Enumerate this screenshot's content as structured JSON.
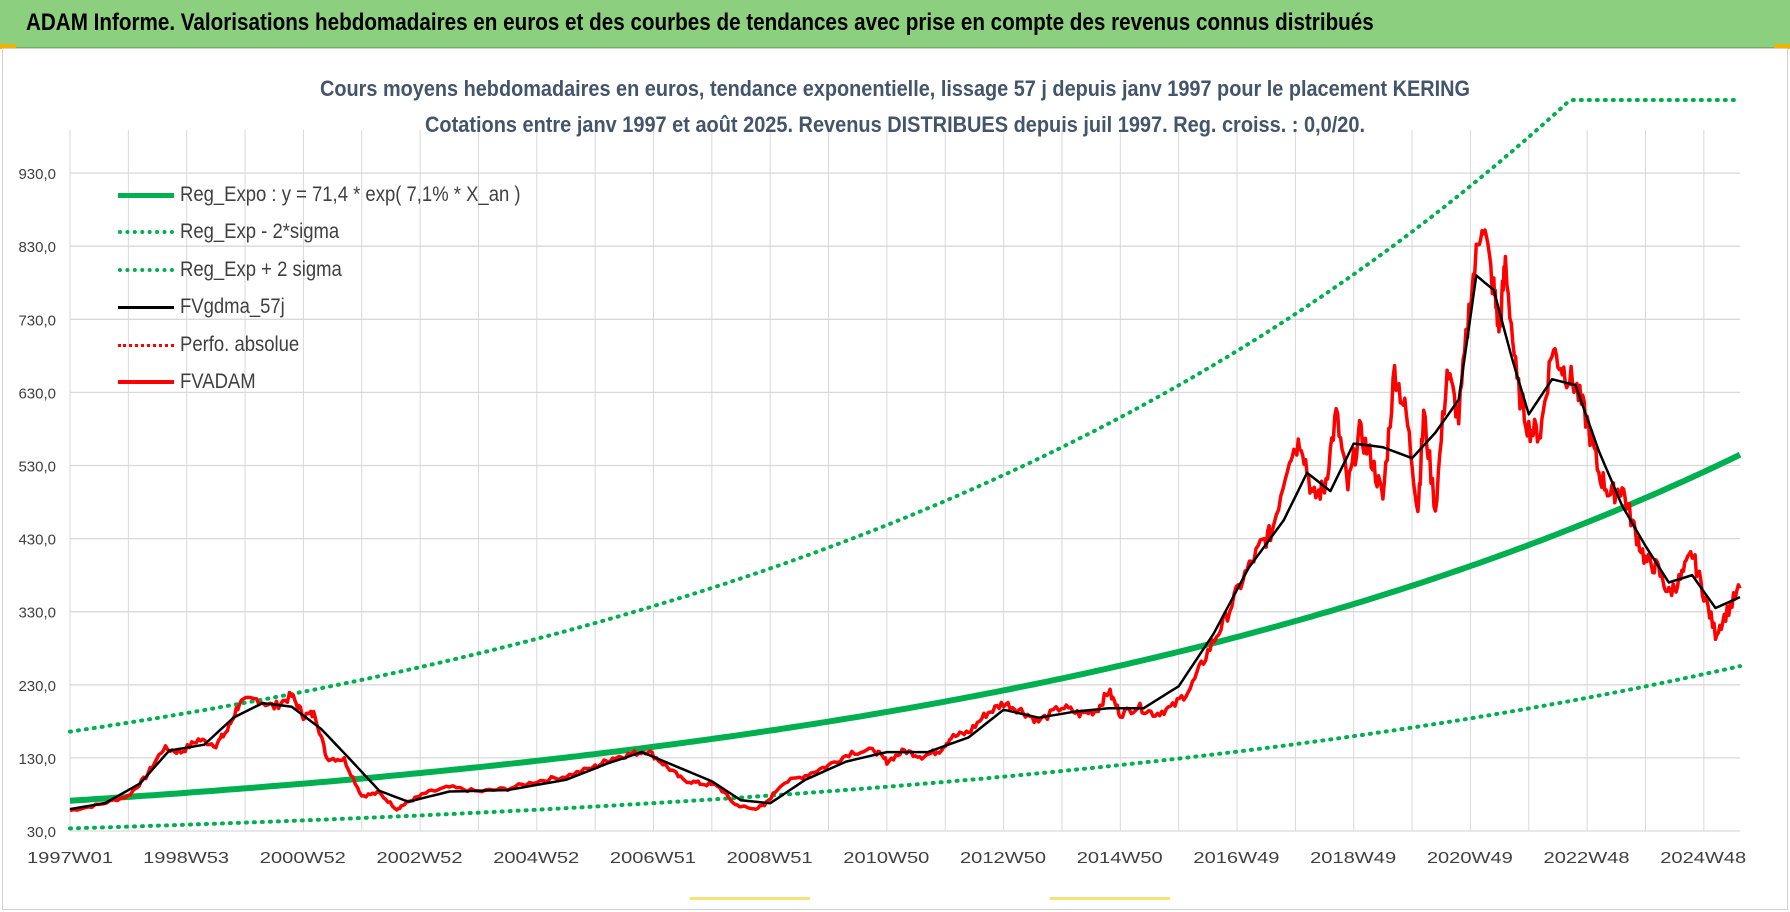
{
  "header": {
    "title": "ADAM Informe. Valorisations hebdomadaires en euros et des courbes de tendances avec prise en compte des revenus connus distribués"
  },
  "colors": {
    "header_bg": "#8ccf7e",
    "regression": "#00b050",
    "smoothed": "#000000",
    "price": "#ff0000",
    "perf_absolue": "#ff0000",
    "grid": "#d9d9d9",
    "title_text": "#44546a"
  },
  "chart_data": {
    "type": "line",
    "title_line1": "Cours moyens hebdomadaires en euros, tendance exponentielle, lissage 57 j depuis janv 1997 pour le placement KERING",
    "title_line2": "Cotations entre janv 1997 et août 2025. Revenus DISTRIBUES depuis juil 1997. Reg. croiss. : 0,0/20.",
    "xlabel": "",
    "ylabel": "",
    "ylim": [
      30,
      1030
    ],
    "yticks": [
      "30,0",
      "130,0",
      "230,0",
      "330,0",
      "430,0",
      "530,0",
      "630,0",
      "730,0",
      "830,0",
      "930,0"
    ],
    "xticks": [
      "1997W01",
      "1998W53",
      "2000W52",
      "2002W52",
      "2004W52",
      "2006W51",
      "2008W51",
      "2010W50",
      "2012W50",
      "2014W50",
      "2016W49",
      "2018W49",
      "2020W49",
      "2022W48",
      "2024W48"
    ],
    "xlim_years": [
      1997.0,
      2025.62
    ],
    "grid": true,
    "legend_position": "top-left",
    "legend": [
      {
        "key": "reg_expo",
        "label": "Reg_Expo : y = 71,4 * exp( 7,1% *  X_an )",
        "style": "solid-thick",
        "color": "#00b050"
      },
      {
        "key": "reg_minus",
        "label": "Reg_Exp - 2*sigma",
        "style": "dotted",
        "color": "#00b050"
      },
      {
        "key": "reg_plus",
        "label": "Reg_Exp + 2 sigma",
        "style": "dotted",
        "color": "#00b050"
      },
      {
        "key": "fvgdma",
        "label": "FVgdma_57j",
        "style": "solid",
        "color": "#000000"
      },
      {
        "key": "perfo",
        "label": "Perfo. absolue",
        "style": "dotted",
        "color": "#ff0000"
      },
      {
        "key": "fvadam",
        "label": "FVADAM",
        "style": "solid-thick",
        "color": "#ff0000"
      }
    ],
    "series": [
      {
        "name": "Reg_Expo : y = 71,4 * exp( 7,1% *  X_an )",
        "formula": {
          "a": 71.4,
          "rate": 0.071
        }
      },
      {
        "name": "Reg_Exp - 2*sigma",
        "formula": {
          "a": 33.5,
          "rate": 0.071
        }
      },
      {
        "name": "Reg_Exp + 2 sigma",
        "formula": {
          "a": 166,
          "rate": 0.071
        },
        "cap": 1030
      },
      {
        "name": "FVADAM",
        "x": [
          1997.0,
          1997.5,
          1998.0,
          1998.3,
          1998.6,
          1998.9,
          1999.2,
          1999.5,
          1999.7,
          1999.9,
          2000.2,
          2000.5,
          2000.8,
          2001.0,
          2001.2,
          2001.4,
          2001.7,
          2002.0,
          2002.3,
          2002.6,
          2002.8,
          2003.1,
          2003.5,
          2004.0,
          2004.5,
          2005.0,
          2005.5,
          2006.0,
          2006.3,
          2006.6,
          2006.9,
          2007.2,
          2007.5,
          2007.8,
          2008.1,
          2008.4,
          2008.7,
          2008.9,
          2009.2,
          2009.6,
          2010.0,
          2010.4,
          2010.8,
          2011.0,
          2011.3,
          2011.6,
          2011.9,
          2012.1,
          2012.4,
          2012.7,
          2013.0,
          2013.3,
          2013.6,
          2014.0,
          2014.3,
          2014.6,
          2014.8,
          2015.0,
          2015.3,
          2015.6,
          2015.9,
          2016.2,
          2016.5,
          2016.8,
          2017.1,
          2017.4,
          2017.6,
          2017.9,
          2018.1,
          2018.3,
          2018.5,
          2018.7,
          2018.9,
          2019.1,
          2019.3,
          2019.5,
          2019.7,
          2019.9,
          2020.1,
          2020.2,
          2020.4,
          2020.6,
          2020.8,
          2021.0,
          2021.2,
          2021.4,
          2021.5,
          2021.6,
          2021.8,
          2022.0,
          2022.2,
          2022.4,
          2022.6,
          2022.8,
          2023.0,
          2023.2,
          2023.4,
          2023.6,
          2023.8,
          2024.0,
          2024.2,
          2024.4,
          2024.6,
          2024.8,
          2025.0,
          2025.2,
          2025.4,
          2025.62
        ],
        "y": [
          58,
          66,
          78,
          104,
          143,
          138,
          155,
          148,
          168,
          205,
          210,
          200,
          215,
          188,
          190,
          130,
          128,
          78,
          82,
          60,
          70,
          82,
          90,
          84,
          88,
          98,
          105,
          118,
          130,
          135,
          140,
          120,
          100,
          95,
          92,
          66,
          60,
          65,
          95,
          106,
          120,
          138,
          140,
          125,
          140,
          132,
          140,
          158,
          165,
          190,
          205,
          195,
          180,
          200,
          190,
          195,
          222,
          190,
          200,
          190,
          200,
          225,
          275,
          320,
          375,
          420,
          440,
          545,
          565,
          485,
          500,
          600,
          500,
          575,
          540,
          485,
          660,
          600,
          470,
          600,
          470,
          660,
          595,
          760,
          870,
          770,
          715,
          810,
          640,
          580,
          575,
          690,
          660,
          640,
          590,
          520,
          490,
          500,
          445,
          400,
          390,
          355,
          375,
          410,
          355,
          300,
          330,
          362
        ]
      },
      {
        "name": "FVgdma_57j",
        "x": [
          1997.0,
          1997.6,
          1998.2,
          1998.7,
          1999.3,
          1999.8,
          2000.3,
          2000.8,
          2001.3,
          2001.8,
          2002.3,
          2002.8,
          2003.5,
          2004.5,
          2005.5,
          2006.2,
          2006.8,
          2007.4,
          2008.0,
          2008.5,
          2009.0,
          2009.6,
          2010.3,
          2011.0,
          2011.7,
          2012.4,
          2013.0,
          2013.6,
          2014.2,
          2014.8,
          2015.4,
          2016.0,
          2016.6,
          2017.2,
          2017.8,
          2018.2,
          2018.6,
          2019.0,
          2019.5,
          2020.0,
          2020.4,
          2020.8,
          2021.1,
          2021.4,
          2021.7,
          2022.0,
          2022.4,
          2022.8,
          2023.2,
          2023.6,
          2024.0,
          2024.4,
          2024.8,
          2025.2,
          2025.62
        ],
        "y": [
          60,
          68,
          95,
          140,
          148,
          185,
          205,
          200,
          170,
          128,
          85,
          70,
          84,
          86,
          100,
          122,
          138,
          118,
          98,
          72,
          68,
          100,
          125,
          138,
          138,
          158,
          196,
          185,
          193,
          198,
          198,
          228,
          300,
          390,
          455,
          520,
          495,
          560,
          555,
          540,
          575,
          620,
          790,
          770,
          680,
          600,
          648,
          640,
          550,
          475,
          420,
          370,
          380,
          335,
          350
        ]
      }
    ]
  }
}
